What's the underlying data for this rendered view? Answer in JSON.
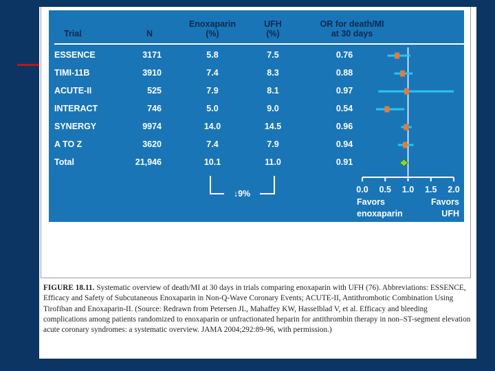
{
  "header": {
    "trial": "Trial",
    "n": "N",
    "enox_line1": "Enoxaparin",
    "enox_line2": "(%)",
    "ufh_line1": "UFH",
    "ufh_line2": "(%)",
    "or_line1": "OR for death/MI",
    "or_line2": "at 30 days"
  },
  "rows": [
    {
      "trial": "ESSENCE",
      "n": "3171",
      "enox": "5.8",
      "ufh": "7.5",
      "or": "0.76"
    },
    {
      "trial": "TIMI-11B",
      "n": "3910",
      "enox": "7.4",
      "ufh": "8.3",
      "or": "0.88"
    },
    {
      "trial": "ACUTE-II",
      "n": "525",
      "enox": "7.9",
      "ufh": "8.1",
      "or": "0.97"
    },
    {
      "trial": "INTERACT",
      "n": "746",
      "enox": "5.0",
      "ufh": "9.0",
      "or": "0.54"
    },
    {
      "trial": "SYNERGY",
      "n": "9974",
      "enox": "14.0",
      "ufh": "14.5",
      "or": "0.96"
    },
    {
      "trial": "A TO Z",
      "n": "3620",
      "enox": "7.4",
      "ufh": "7.9",
      "or": "0.94"
    },
    {
      "trial": "Total",
      "n": "21,946",
      "enox": "10.1",
      "ufh": "11.0",
      "or": "0.91"
    }
  ],
  "bracket_label": "↓9%",
  "chart_data": {
    "type": "scatter",
    "subtype": "forest-plot",
    "title": "OR for death/MI at 30 days",
    "categories": [
      "ESSENCE",
      "TIMI-11B",
      "ACUTE-II",
      "INTERACT",
      "SYNERGY",
      "A TO Z",
      "Total"
    ],
    "values": [
      0.76,
      0.88,
      0.97,
      0.54,
      0.96,
      0.94,
      0.91
    ],
    "ci_low": [
      0.55,
      0.7,
      0.35,
      0.3,
      0.85,
      0.78,
      0.85
    ],
    "ci_high": [
      1.05,
      1.1,
      2.0,
      0.92,
      1.08,
      1.12,
      0.97
    ],
    "xlim": [
      0.0,
      2.0
    ],
    "xticks": [
      "0.0",
      "0.5",
      "1.0",
      "1.5",
      "2.0"
    ],
    "reference_line": 1.0,
    "favors_left": [
      "Favors",
      "enoxaparin"
    ],
    "favors_right": [
      "Favors",
      "UFH"
    ],
    "colors": {
      "ci": "#29c5ee",
      "point": "#e07c3c",
      "summary": "#8bd13a",
      "axis": "#ffffff"
    }
  },
  "caption": {
    "label": "FIGURE 18.11.",
    "text": " Systematic overview of death/MI at 30 days in trials comparing enoxaparin with UFH (76). Abbreviations: ESSENCE, Efficacy and Safety of Subcutaneous Enoxaparin in Non-Q-Wave Coronary Events; ACUTE-II, Antithrombotic Combination Using Tirofiban and Enoxaparin-II. (Source: Redrawn from Petersen JL, Mahaffey KW, Hasselblad V, et al. Efficacy and bleeding complications among patients randomized to enoxaparin or unfractionated heparin for antithrombin therapy in non–ST-segment elevation acute coronary syndromes: a systematic overview. JAMA 2004;292:89-96, with permission.)"
  }
}
